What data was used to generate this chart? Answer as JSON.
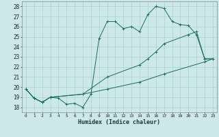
{
  "xlabel": "Humidex (Indice chaleur)",
  "xlim": [
    -0.5,
    23.5
  ],
  "ylim": [
    17.5,
    28.5
  ],
  "yticks": [
    18,
    19,
    20,
    21,
    22,
    23,
    24,
    25,
    26,
    27,
    28
  ],
  "xticks": [
    0,
    1,
    2,
    3,
    4,
    5,
    6,
    7,
    8,
    9,
    10,
    11,
    12,
    13,
    14,
    15,
    16,
    17,
    18,
    19,
    20,
    21,
    22,
    23
  ],
  "bg_color": "#cce8e8",
  "line_color": "#1a6b5a",
  "grid_color": "#aad0d0",
  "line1_x": [
    0,
    1,
    2,
    3,
    4,
    5,
    6,
    7,
    8,
    9,
    10,
    11,
    12,
    13,
    14,
    15,
    16,
    17,
    18,
    19,
    20,
    21,
    22,
    23
  ],
  "line1_y": [
    19.8,
    18.9,
    18.5,
    19.0,
    18.9,
    18.3,
    18.4,
    18.0,
    19.3,
    24.8,
    26.5,
    26.5,
    25.8,
    26.0,
    25.5,
    27.2,
    28.0,
    27.8,
    26.5,
    26.2,
    26.1,
    25.2,
    22.8,
    22.8
  ],
  "line2_x": [
    0,
    1,
    2,
    3,
    7,
    10,
    14,
    15,
    16,
    17,
    20,
    21,
    22,
    23
  ],
  "line2_y": [
    19.8,
    18.9,
    18.5,
    19.0,
    19.3,
    21.0,
    22.2,
    22.8,
    23.5,
    24.3,
    25.2,
    25.5,
    22.8,
    22.8
  ],
  "line3_x": [
    0,
    1,
    2,
    3,
    7,
    10,
    14,
    17,
    22,
    23
  ],
  "line3_y": [
    19.8,
    18.9,
    18.5,
    19.0,
    19.3,
    19.8,
    20.5,
    21.3,
    22.5,
    22.8
  ]
}
